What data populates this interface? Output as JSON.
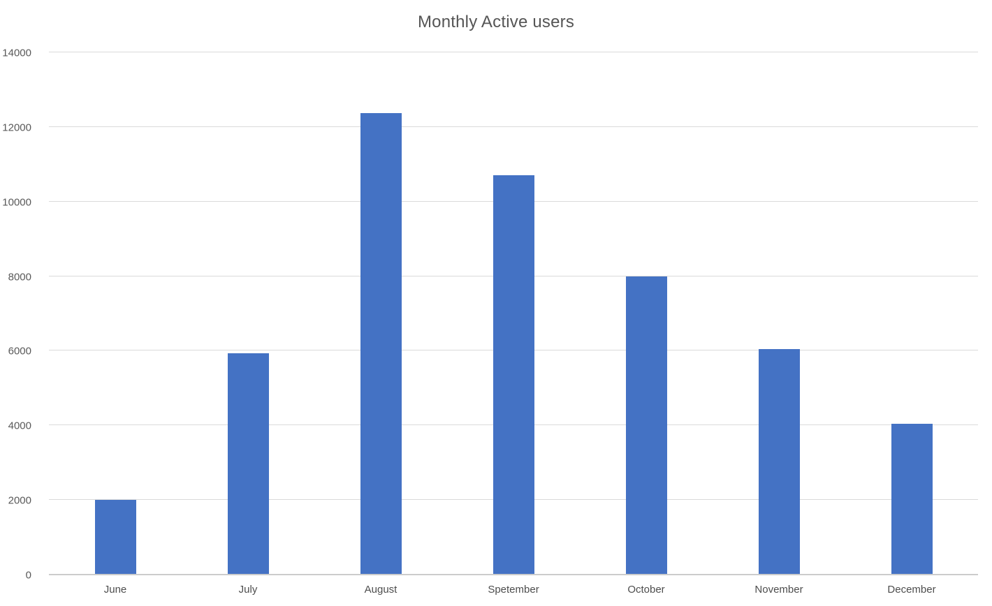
{
  "chart_data": {
    "type": "bar",
    "title": "Monthly Active users",
    "categories": [
      "June",
      "July",
      "August",
      "Spetember",
      "October",
      "November",
      "December"
    ],
    "values": [
      2010,
      5930,
      12380,
      10700,
      7990,
      6050,
      4050
    ],
    "xlabel": "",
    "ylabel": "",
    "ylim": [
      0,
      14000
    ],
    "ytick_step": 2000,
    "ytick_labels": [
      "0",
      "2000",
      "4000",
      "6000",
      "8000",
      "10000",
      "12000",
      "14000"
    ],
    "grid": true,
    "legend": "none",
    "bar_color": "#4472C4",
    "gridline_color": "#dadada",
    "axis_line_color": "#cccccc",
    "tick_label_color": "#595959",
    "title_color": "#555555",
    "background_color": "#ffffff"
  }
}
